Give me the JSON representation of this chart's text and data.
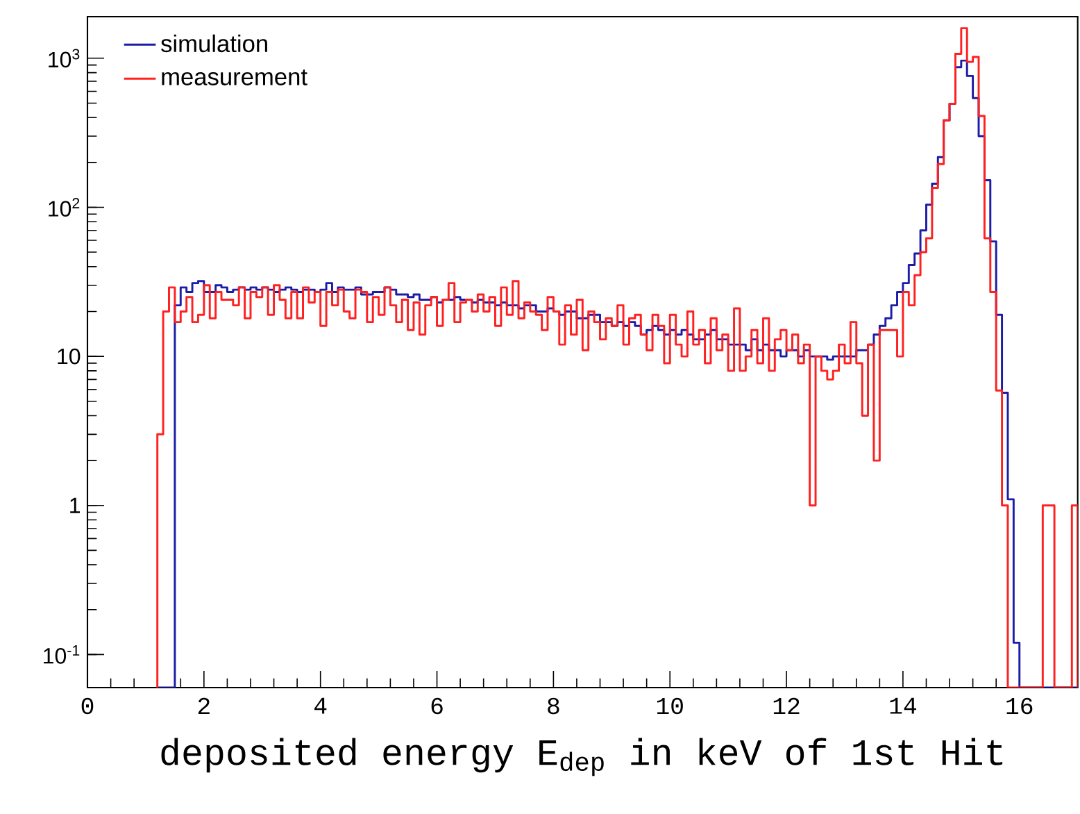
{
  "chart_data": {
    "type": "histogram",
    "xlabel": "deposited energy E$_{dep}$ in keV of 1st Hit",
    "bins": [
      1.2,
      1.3,
      1.4,
      1.5,
      1.6,
      1.7,
      1.8,
      1.9,
      2.0,
      2.1,
      2.2,
      2.3,
      2.4,
      2.5,
      2.6,
      2.7,
      2.8,
      2.9,
      3.0,
      3.1,
      3.2,
      3.3,
      3.4,
      3.5,
      3.6,
      3.7,
      3.8,
      3.9,
      4.0,
      4.1,
      4.2,
      4.3,
      4.4,
      4.5,
      4.6,
      4.7,
      4.8,
      4.9,
      5.0,
      5.1,
      5.2,
      5.3,
      5.4,
      5.5,
      5.6,
      5.7,
      5.8,
      5.9,
      6.0,
      6.1,
      6.2,
      6.3,
      6.4,
      6.5,
      6.6,
      6.7,
      6.8,
      6.9,
      7.0,
      7.1,
      7.2,
      7.3,
      7.4,
      7.5,
      7.6,
      7.7,
      7.8,
      7.9,
      8.0,
      8.1,
      8.2,
      8.3,
      8.4,
      8.5,
      8.6,
      8.7,
      8.8,
      8.9,
      9.0,
      9.1,
      9.2,
      9.3,
      9.4,
      9.5,
      9.6,
      9.7,
      9.8,
      9.9,
      10.0,
      10.1,
      10.2,
      10.3,
      10.4,
      10.5,
      10.6,
      10.7,
      10.8,
      10.9,
      11.0,
      11.1,
      11.2,
      11.3,
      11.4,
      11.5,
      11.6,
      11.7,
      11.8,
      11.9,
      12.0,
      12.1,
      12.2,
      12.3,
      12.4,
      12.5,
      12.6,
      12.7,
      12.8,
      12.9,
      13.0,
      13.1,
      13.2,
      13.3,
      13.4,
      13.5,
      13.6,
      13.7,
      13.8,
      13.9,
      14.0,
      14.1,
      14.2,
      14.3,
      14.4,
      14.5,
      14.6,
      14.7,
      14.8,
      14.9,
      15.0,
      15.1,
      15.2,
      15.3,
      15.4,
      15.5,
      15.6,
      15.7,
      15.8,
      15.9,
      16.0,
      16.1,
      16.2,
      16.3,
      16.4,
      16.5,
      16.6,
      16.7,
      16.8,
      16.9,
      17.0
    ],
    "series": [
      {
        "name": "simulation",
        "color": "#1c1ca6",
        "values": [
          null,
          null,
          null,
          22,
          29,
          27,
          31,
          32,
          27,
          27,
          30,
          29,
          27,
          28,
          29,
          28,
          29,
          28,
          29,
          28,
          27,
          28,
          29,
          28,
          27,
          28,
          28,
          27,
          28,
          31,
          27,
          29,
          28,
          28,
          29,
          26,
          26,
          27,
          27,
          29,
          28,
          26,
          26,
          25,
          26,
          24,
          24,
          25,
          23,
          24,
          24,
          25,
          24,
          24,
          23,
          24,
          23,
          23,
          22,
          23,
          22,
          22,
          21,
          22,
          22,
          20,
          20,
          21,
          20,
          19,
          20,
          20,
          18,
          18,
          19,
          19,
          17,
          17,
          16,
          17,
          16,
          17,
          16,
          14,
          15,
          16,
          15,
          14,
          15,
          14,
          15,
          14,
          13,
          13,
          14,
          15,
          13,
          13,
          12,
          12,
          12,
          11,
          13,
          11,
          12,
          11,
          11,
          10,
          11,
          11,
          10,
          11,
          10,
          10,
          10,
          9.5,
          10,
          10,
          10,
          10,
          11,
          11,
          12,
          14,
          16,
          18,
          22,
          27,
          31,
          41,
          49,
          70,
          104,
          144,
          217,
          383,
          495,
          870,
          965,
          760,
          540,
          300,
          152,
          59,
          19,
          5.7,
          1.1,
          0.12,
          null,
          null,
          null,
          null,
          null,
          null,
          null,
          null,
          null,
          null
        ]
      },
      {
        "name": "measurement",
        "color": "#ff2020",
        "values": [
          3,
          20,
          29,
          17,
          20,
          25,
          17,
          19,
          30,
          18,
          27,
          24,
          24,
          22,
          29,
          18,
          27,
          25,
          29,
          19,
          30,
          24,
          18,
          27,
          18,
          29,
          23,
          27,
          16,
          27,
          22,
          28,
          20,
          18,
          28,
          27,
          17,
          25,
          19,
          29,
          22,
          17,
          24,
          15,
          23,
          14,
          22,
          25,
          16,
          24,
          31,
          17,
          23,
          24,
          20,
          26,
          20,
          25,
          16,
          29,
          19,
          32,
          18,
          23,
          20,
          19,
          15,
          25,
          20,
          12,
          22,
          14,
          24,
          11,
          20,
          17,
          13,
          18,
          16,
          22,
          12,
          18,
          19,
          14,
          11,
          19,
          16,
          9,
          19,
          12,
          10,
          20,
          12,
          15,
          9,
          18,
          11,
          14,
          8,
          21,
          8,
          10,
          15,
          9,
          18,
          8,
          13,
          15,
          11,
          14,
          9,
          12,
          1,
          10,
          8,
          7,
          8,
          12,
          9,
          17,
          9,
          4,
          12,
          2,
          15,
          15,
          15,
          10,
          27,
          22,
          35,
          50,
          62,
          135,
          195,
          383,
          495,
          1070,
          1590,
          945,
          1020,
          410,
          62,
          27,
          5.9,
          1,
          null,
          null,
          null,
          null,
          null,
          null,
          1,
          1,
          null,
          null,
          null,
          1
        ]
      }
    ],
    "xlim": [
      0,
      17
    ],
    "ylim": [
      0.06,
      1900
    ],
    "xticks": [
      0,
      2,
      4,
      6,
      8,
      10,
      12,
      14,
      16
    ],
    "yticks": [
      {
        "value": 0.1,
        "label": "10$^{-1}$"
      },
      {
        "value": 1,
        "label": "1"
      },
      {
        "value": 10,
        "label": "10"
      },
      {
        "value": 100,
        "label": "10$^{2}$"
      },
      {
        "value": 1000,
        "label": "10$^{3}$"
      }
    ],
    "log": "y",
    "legend": "top left"
  }
}
